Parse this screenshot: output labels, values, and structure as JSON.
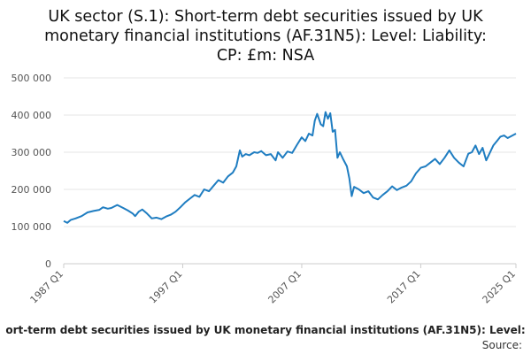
{
  "title_lines": [
    "UK sector (S.1): Short-term debt securities issued by UK",
    "monetary financial institutions (AF.31N5): Level: Liability:",
    "CP: £m: NSA"
  ],
  "legend_text": "ort-term debt securities issued by UK monetary financial institutions (AF.31N5): Level:",
  "source_label": "Source:",
  "colors": {
    "line": "#1f7dc1",
    "grid": "#e6e6e6",
    "axis": "#cccccc"
  },
  "chart_data": {
    "type": "line",
    "title": "UK sector (S.1): Short-term debt securities issued by UK monetary financial institutions (AF.31N5): Level: Liability: CP: £m: NSA",
    "xlabel": "",
    "ylabel": "",
    "ylim": [
      0,
      500000
    ],
    "xlim": [
      1987.0,
      2025.0
    ],
    "yticks": [
      0,
      100000,
      200000,
      300000,
      400000,
      500000
    ],
    "ytick_labels": [
      "0",
      "100 000",
      "200 000",
      "300 000",
      "400 000",
      "500 000"
    ],
    "xticks": [
      1987.0,
      1997.0,
      2007.0,
      2017.0,
      2025.0
    ],
    "xtick_labels": [
      "1987 Q1",
      "1997 Q1",
      "2007 Q1",
      "2017 Q1",
      "2025 Q1"
    ],
    "grid": true,
    "series": [
      {
        "values": [
          [
            1987.0,
            115000
          ],
          [
            1987.3,
            110000
          ],
          [
            1987.6,
            118000
          ],
          [
            1988.0,
            122000
          ],
          [
            1988.5,
            128000
          ],
          [
            1989.0,
            138000
          ],
          [
            1989.5,
            142000
          ],
          [
            1990.0,
            145000
          ],
          [
            1990.3,
            152000
          ],
          [
            1990.7,
            148000
          ],
          [
            1991.0,
            150000
          ],
          [
            1991.5,
            158000
          ],
          [
            1992.0,
            150000
          ],
          [
            1992.4,
            143000
          ],
          [
            1992.8,
            135000
          ],
          [
            1993.0,
            128000
          ],
          [
            1993.3,
            140000
          ],
          [
            1993.6,
            146000
          ],
          [
            1994.0,
            135000
          ],
          [
            1994.4,
            122000
          ],
          [
            1994.8,
            124000
          ],
          [
            1995.2,
            120000
          ],
          [
            1995.6,
            127000
          ],
          [
            1996.0,
            132000
          ],
          [
            1996.4,
            140000
          ],
          [
            1996.8,
            152000
          ],
          [
            1997.2,
            165000
          ],
          [
            1997.6,
            175000
          ],
          [
            1998.0,
            185000
          ],
          [
            1998.4,
            180000
          ],
          [
            1998.8,
            200000
          ],
          [
            1999.2,
            195000
          ],
          [
            1999.6,
            210000
          ],
          [
            2000.0,
            225000
          ],
          [
            2000.4,
            218000
          ],
          [
            2000.8,
            235000
          ],
          [
            2001.2,
            245000
          ],
          [
            2001.5,
            262000
          ],
          [
            2001.8,
            305000
          ],
          [
            2002.0,
            288000
          ],
          [
            2002.3,
            295000
          ],
          [
            2002.6,
            292000
          ],
          [
            2003.0,
            300000
          ],
          [
            2003.3,
            298000
          ],
          [
            2003.6,
            303000
          ],
          [
            2004.0,
            292000
          ],
          [
            2004.4,
            295000
          ],
          [
            2004.8,
            278000
          ],
          [
            2005.0,
            300000
          ],
          [
            2005.4,
            285000
          ],
          [
            2005.8,
            302000
          ],
          [
            2006.2,
            298000
          ],
          [
            2006.6,
            320000
          ],
          [
            2007.0,
            340000
          ],
          [
            2007.3,
            330000
          ],
          [
            2007.6,
            350000
          ],
          [
            2007.9,
            345000
          ],
          [
            2008.1,
            385000
          ],
          [
            2008.3,
            403000
          ],
          [
            2008.6,
            375000
          ],
          [
            2008.8,
            370000
          ],
          [
            2009.0,
            408000
          ],
          [
            2009.2,
            390000
          ],
          [
            2009.4,
            405000
          ],
          [
            2009.6,
            355000
          ],
          [
            2009.8,
            360000
          ],
          [
            2010.0,
            285000
          ],
          [
            2010.2,
            300000
          ],
          [
            2010.5,
            280000
          ],
          [
            2010.8,
            262000
          ],
          [
            2011.0,
            230000
          ],
          [
            2011.2,
            182000
          ],
          [
            2011.4,
            207000
          ],
          [
            2011.8,
            200000
          ],
          [
            2012.2,
            190000
          ],
          [
            2012.6,
            195000
          ],
          [
            2013.0,
            178000
          ],
          [
            2013.4,
            173000
          ],
          [
            2013.8,
            185000
          ],
          [
            2014.2,
            195000
          ],
          [
            2014.6,
            208000
          ],
          [
            2015.0,
            198000
          ],
          [
            2015.4,
            205000
          ],
          [
            2015.8,
            210000
          ],
          [
            2016.2,
            222000
          ],
          [
            2016.6,
            243000
          ],
          [
            2017.0,
            258000
          ],
          [
            2017.4,
            262000
          ],
          [
            2017.8,
            272000
          ],
          [
            2018.2,
            282000
          ],
          [
            2018.6,
            268000
          ],
          [
            2019.0,
            285000
          ],
          [
            2019.4,
            305000
          ],
          [
            2019.8,
            285000
          ],
          [
            2020.2,
            272000
          ],
          [
            2020.6,
            262000
          ],
          [
            2021.0,
            296000
          ],
          [
            2021.3,
            300000
          ],
          [
            2021.6,
            318000
          ],
          [
            2021.9,
            295000
          ],
          [
            2022.2,
            312000
          ],
          [
            2022.5,
            278000
          ],
          [
            2022.8,
            298000
          ],
          [
            2023.1,
            318000
          ],
          [
            2023.4,
            330000
          ],
          [
            2023.7,
            342000
          ],
          [
            2024.0,
            345000
          ],
          [
            2024.3,
            338000
          ],
          [
            2024.6,
            343000
          ],
          [
            2025.0,
            350000
          ]
        ]
      }
    ]
  }
}
